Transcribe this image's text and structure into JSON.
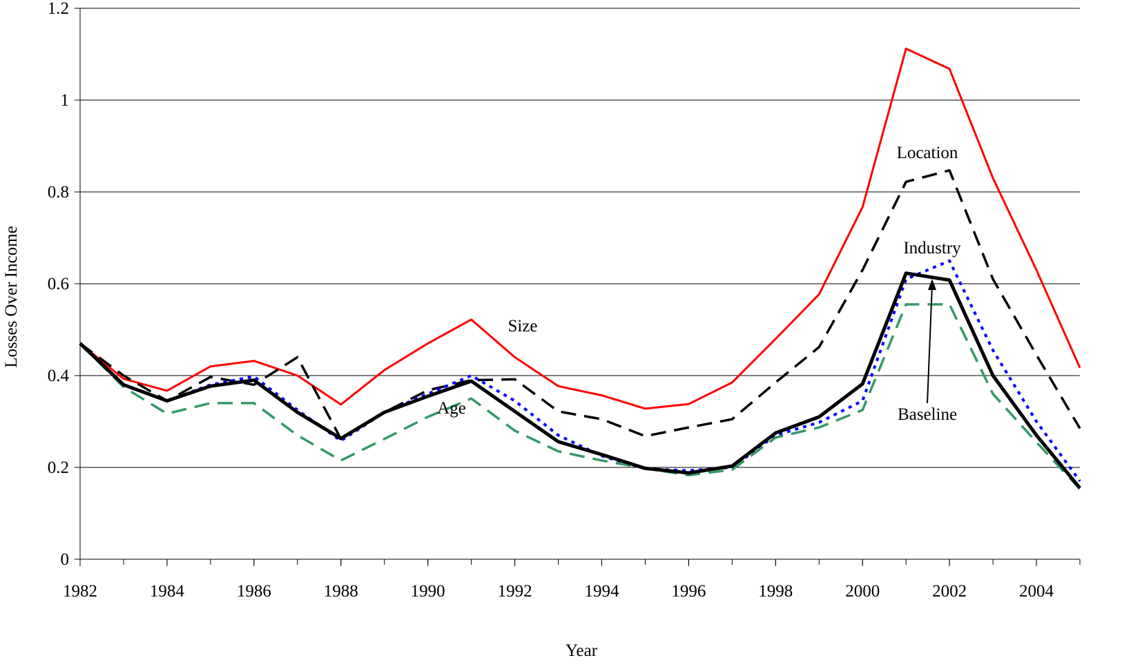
{
  "chart_data": {
    "type": "line",
    "xlabel": "Year",
    "ylabel": "Losses Over Income",
    "x": [
      1982,
      1983,
      1984,
      1985,
      1986,
      1987,
      1988,
      1989,
      1990,
      1991,
      1992,
      1993,
      1994,
      1995,
      1996,
      1997,
      1998,
      1999,
      2000,
      2001,
      2002,
      2003,
      2004,
      2005
    ],
    "xlim": [
      1982,
      2005
    ],
    "xticks": [
      1982,
      1984,
      1986,
      1988,
      1990,
      1992,
      1994,
      1996,
      1998,
      2000,
      2002,
      2004
    ],
    "ylim": [
      0,
      1.2
    ],
    "yticks": [
      0,
      0.2,
      0.4,
      0.6,
      0.8,
      1,
      1.2
    ],
    "grid": true,
    "series": [
      {
        "name": "Size",
        "color": "#ff0000",
        "style": "solid",
        "values": [
          0.47,
          0.393,
          0.367,
          0.42,
          0.432,
          0.4,
          0.337,
          0.412,
          0.47,
          0.522,
          0.44,
          0.377,
          0.357,
          0.328,
          0.338,
          0.385,
          0.48,
          0.577,
          0.767,
          1.112,
          1.068,
          0.83,
          0.63,
          0.417
        ]
      },
      {
        "name": "Location",
        "color": "#000000",
        "style": "dashed",
        "values": [
          0.47,
          0.4,
          0.345,
          0.397,
          0.38,
          0.44,
          0.262,
          0.32,
          0.368,
          0.39,
          0.392,
          0.322,
          0.305,
          0.268,
          0.287,
          0.305,
          0.385,
          0.462,
          0.63,
          0.822,
          0.847,
          0.61,
          0.445,
          0.285
        ]
      },
      {
        "name": "Industry",
        "color": "#0000ff",
        "style": "dotted",
        "values": [
          0.47,
          0.38,
          0.345,
          0.38,
          0.398,
          0.325,
          0.258,
          0.32,
          0.36,
          0.4,
          0.345,
          0.27,
          0.225,
          0.197,
          0.193,
          0.2,
          0.27,
          0.298,
          0.345,
          0.61,
          0.65,
          0.455,
          0.3,
          0.17
        ]
      },
      {
        "name": "Age",
        "color": "#339966",
        "style": "dashed",
        "values": [
          0.47,
          0.375,
          0.317,
          0.34,
          0.34,
          0.27,
          0.215,
          0.262,
          0.31,
          0.35,
          0.28,
          0.235,
          0.215,
          0.198,
          0.183,
          0.195,
          0.265,
          0.287,
          0.325,
          0.555,
          0.555,
          0.36,
          0.255,
          0.153
        ]
      },
      {
        "name": "Baseline",
        "color": "#000000",
        "style": "thick",
        "values": [
          0.47,
          0.38,
          0.345,
          0.377,
          0.39,
          0.32,
          0.263,
          0.32,
          0.355,
          0.388,
          0.322,
          0.256,
          0.228,
          0.198,
          0.188,
          0.203,
          0.275,
          0.31,
          0.382,
          0.623,
          0.608,
          0.4,
          0.27,
          0.155
        ]
      }
    ]
  }
}
